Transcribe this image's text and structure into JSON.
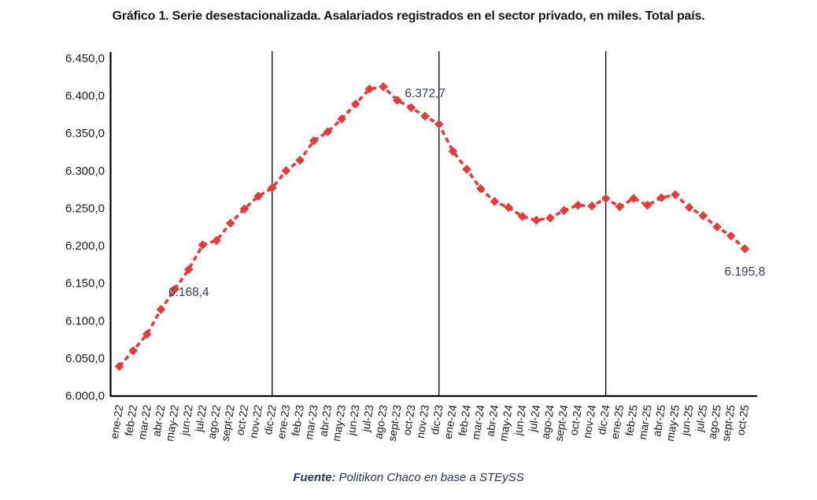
{
  "title": "Gráfico 1. Serie desestacionalizada. Asalariados registrados en el sector privado, en miles. Total país.",
  "source": {
    "prefix": "Fuente:",
    "text": "Politikon Chaco en base a STEySS"
  },
  "chart_data": {
    "type": "line",
    "title": "Gráfico 1. Serie desestacionalizada. Asalariados registrados en el sector privado, en miles. Total país.",
    "xlabel": "",
    "ylabel": "",
    "legend": "none",
    "grid": false,
    "line_style": "dashed",
    "marker": "diamond",
    "ylim": [
      6000,
      6450
    ],
    "categories": [
      "ene-22",
      "feb-22",
      "mar-22",
      "abr-22",
      "may-22",
      "jun-22",
      "jul-22",
      "ago-22",
      "sept-22",
      "oct-22",
      "nov-22",
      "dic-22",
      "ene-23",
      "feb-23",
      "mar-23",
      "abr-23",
      "may-23",
      "jun-23",
      "jul-23",
      "ago-23",
      "sept-23",
      "oct-23",
      "nov-23",
      "dic-23",
      "ene-24",
      "feb-24",
      "mar-24",
      "abr-24",
      "may-24",
      "jun-24",
      "jul-24",
      "ago-24",
      "sept-24",
      "oct-24",
      "nov-24",
      "dic-24",
      "ene-25",
      "feb-25",
      "mar-25",
      "abr-25",
      "may-25",
      "jun-25",
      "jul-25",
      "ago-25",
      "sept-25",
      "oct-25"
    ],
    "series": [
      {
        "name": "Asalariados registrados en el sector privado (serie desestacionalizada, en miles)",
        "values": [
          6039,
          6060,
          6082,
          6115,
          6142,
          6168.4,
          6201,
          6207,
          6230,
          6249,
          6266,
          6277,
          6300,
          6314,
          6340,
          6352,
          6369,
          6389,
          6409,
          6412,
          6394,
          6384,
          6372.7,
          6362,
          6326,
          6302,
          6276,
          6259,
          6251,
          6239,
          6234,
          6237,
          6247,
          6254,
          6253,
          6263,
          6252,
          6263,
          6254,
          6264,
          6268,
          6251,
          6240,
          6225,
          6213,
          6195.8
        ]
      }
    ],
    "y_ticks": [
      {
        "value": 6450,
        "label": "6.450,0"
      },
      {
        "value": 6400,
        "label": "6.400,0"
      },
      {
        "value": 6350,
        "label": "6.350,0"
      },
      {
        "value": 6300,
        "label": "6.300,0"
      },
      {
        "value": 6250,
        "label": "6.250,0"
      },
      {
        "value": 6200,
        "label": "6.200,0"
      },
      {
        "value": 6150,
        "label": "6.150,0"
      },
      {
        "value": 6100,
        "label": "6.100,0"
      },
      {
        "value": 6050,
        "label": "6.050,0"
      },
      {
        "value": 6000,
        "label": "6.000,0"
      }
    ],
    "point_labels": [
      {
        "category": "jun-22",
        "text": "6.168,4",
        "position": "below"
      },
      {
        "category": "nov-23",
        "text": "6.372,7",
        "position": "above"
      },
      {
        "category": "oct-25",
        "text": "6.195,8",
        "position": "below"
      }
    ],
    "separators": [
      "dic-22",
      "dic-23",
      "dic-24"
    ],
    "colors": {
      "line": "#E53C3A",
      "label_text": "#2F3D54",
      "axis": "#000000",
      "tick_text": "#1a1a1a"
    }
  }
}
